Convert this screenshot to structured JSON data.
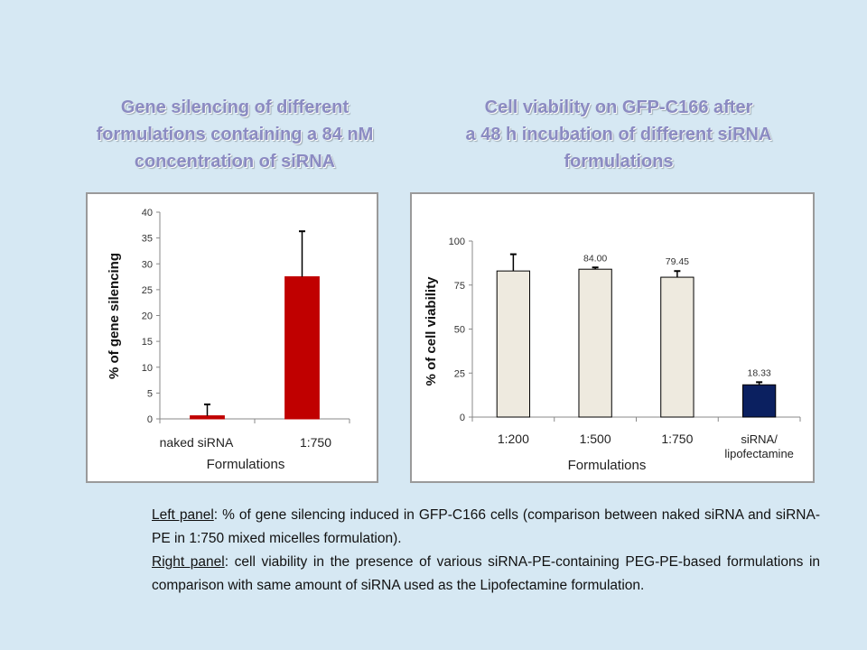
{
  "left_title": {
    "line1": "Gene silencing of different",
    "line2": "formulations containing a 84 nM",
    "line3": "concentration of siRNA"
  },
  "right_title": {
    "line1": "Cell viability on GFP-C166 after",
    "line2": "a 48 h incubation of different siRNA",
    "line3": "formulations"
  },
  "caption": {
    "left_label": "Left panel",
    "left_text": ": % of gene silencing induced in GFP-C166 cells (comparison between naked siRNA and siRNA-PE in 1:750 mixed micelles formulation).",
    "right_label": "Right panel",
    "right_text": ": cell viability in the presence of various siRNA-PE-containing PEG-PE-based formulations in comparison with same amount of siRNA used as the Lipofectamine formulation."
  },
  "colors": {
    "left_bar": "#c00000",
    "right_bar": "#eeeadf",
    "right_bar_lipo": "#0b2060",
    "title": "#8b8bc2"
  },
  "chart_data": [
    {
      "type": "bar",
      "title": "",
      "xlabel": "Formulations",
      "ylabel": "% of gene silencing",
      "ylim": [
        0,
        40
      ],
      "yticks": [
        "0",
        "5",
        "10",
        "15",
        "20",
        "25",
        "30",
        "35",
        "40"
      ],
      "categories": [
        "naked siRNA",
        "1:750"
      ],
      "values": [
        0.6,
        27.5
      ],
      "errors": [
        2.2,
        8.8
      ],
      "data_labels": [
        "",
        ""
      ],
      "grid": false
    },
    {
      "type": "bar",
      "title": "",
      "xlabel": "Formulations",
      "ylabel": "% of cell viability",
      "ylim": [
        0,
        100
      ],
      "yticks": [
        "0",
        "25",
        "50",
        "75",
        "100"
      ],
      "categories": [
        "1:200",
        "1:500",
        "1:750",
        "siRNA/ lipofectamine"
      ],
      "category_lines": [
        [
          "1:200"
        ],
        [
          "1:500"
        ],
        [
          "1:750"
        ],
        [
          "siRNA/",
          "lipofectamine"
        ]
      ],
      "values": [
        83,
        84.0,
        79.45,
        18.33
      ],
      "errors": [
        9.5,
        1,
        3.5,
        1.5
      ],
      "data_labels": [
        "",
        "84.00",
        "79.45",
        "18.33"
      ],
      "grid": false
    }
  ]
}
